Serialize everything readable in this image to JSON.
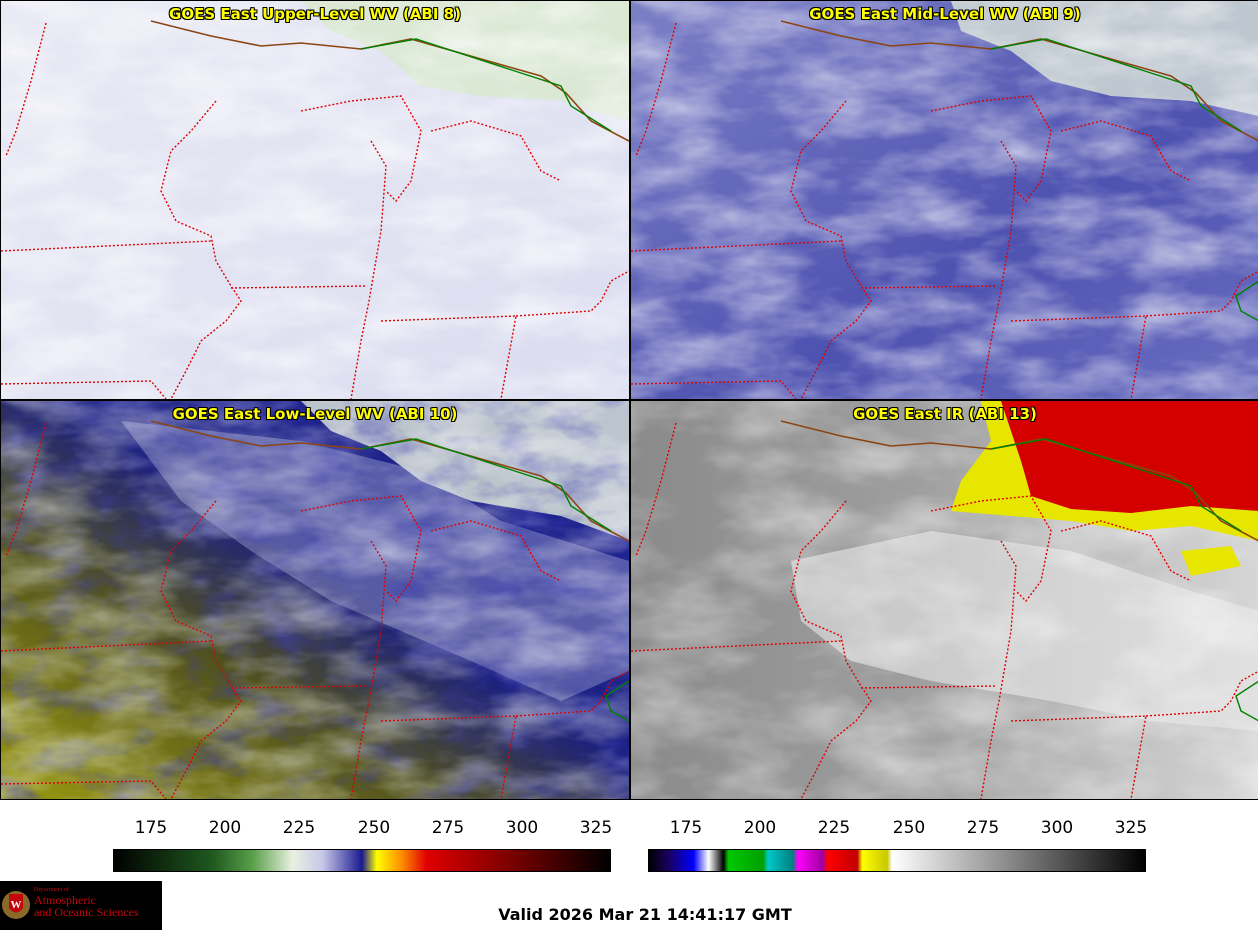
{
  "panels": [
    {
      "title": "GOES East Upper-Level WV (ABI 8)"
    },
    {
      "title": "GOES East Mid-Level WV (ABI 9)"
    },
    {
      "title": "GOES East Low-Level WV (ABI 10)"
    },
    {
      "title": "GOES East IR (ABI 13)"
    }
  ],
  "colorbars": [
    {
      "ticks": [
        "175",
        "200",
        "225",
        "250",
        "275",
        "300",
        "325"
      ]
    },
    {
      "ticks": [
        "175",
        "200",
        "225",
        "250",
        "275",
        "300",
        "325"
      ]
    }
  ],
  "logo": {
    "line1": "Department of",
    "line2": "Atmospheric",
    "line3": "and Oceanic Sciences",
    "crest_letter": "W"
  },
  "footer": {
    "valid": "Valid 2026 Mar 21 14:41:17 GMT"
  },
  "colors": {
    "title": "#ffff00",
    "state_border": "#e00000",
    "canada_border": "#008000",
    "coast": "#8b4513"
  }
}
